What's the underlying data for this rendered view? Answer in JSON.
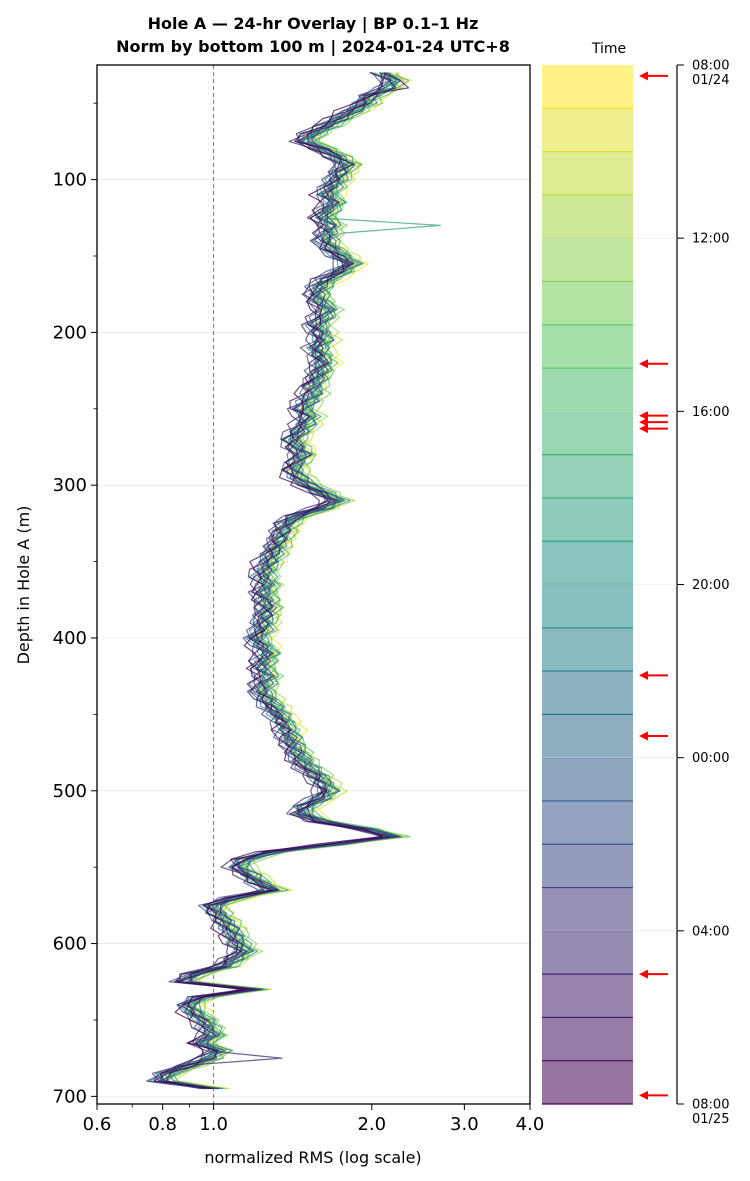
{
  "chart_data": {
    "type": "line",
    "title": "Hole A — 24-hr Overlay  |  BP 0.1–1 Hz",
    "subtitle": "Norm by bottom 100 m  |  2024-01-24 UTC+8",
    "xlabel": "normalized RMS  (log scale)",
    "ylabel": "Depth in Hole A (m)",
    "x_scale": "log",
    "xlim": [
      0.6,
      4.0
    ],
    "ylim": [
      705,
      25
    ],
    "y_inverted": true,
    "x_ticks": [
      {
        "v": 0.6,
        "label": "0.6"
      },
      {
        "v": 0.8,
        "label": "0.8"
      },
      {
        "v": 1.0,
        "label": "1.0"
      },
      {
        "v": 2.0,
        "label": "2.0"
      },
      {
        "v": 3.0,
        "label": "3.0"
      },
      {
        "v": 4.0,
        "label": "4.0"
      }
    ],
    "x_minor_ticks": [
      0.7,
      0.9
    ],
    "y_ticks": [
      {
        "v": 100,
        "label": "100"
      },
      {
        "v": 200,
        "label": "200"
      },
      {
        "v": 300,
        "label": "300"
      },
      {
        "v": 400,
        "label": "400"
      },
      {
        "v": 500,
        "label": "500"
      },
      {
        "v": 600,
        "label": "600"
      },
      {
        "v": 700,
        "label": "700"
      }
    ],
    "y_minor_ticks": [
      50,
      150,
      250,
      350,
      450,
      550,
      650
    ],
    "grid": "horizontal",
    "reference_line": {
      "x": 1.0,
      "style": "dashed"
    },
    "profile_mean": [
      [
        30,
        2.1
      ],
      [
        35,
        2.2
      ],
      [
        40,
        2.15
      ],
      [
        45,
        2.0
      ],
      [
        50,
        1.95
      ],
      [
        55,
        1.85
      ],
      [
        60,
        1.75
      ],
      [
        65,
        1.65
      ],
      [
        70,
        1.55
      ],
      [
        75,
        1.5
      ],
      [
        80,
        1.62
      ],
      [
        85,
        1.72
      ],
      [
        90,
        1.8
      ],
      [
        95,
        1.75
      ],
      [
        100,
        1.72
      ],
      [
        105,
        1.68
      ],
      [
        110,
        1.65
      ],
      [
        115,
        1.7
      ],
      [
        120,
        1.65
      ],
      [
        125,
        1.62
      ],
      [
        130,
        1.68
      ],
      [
        135,
        1.66
      ],
      [
        140,
        1.64
      ],
      [
        145,
        1.68
      ],
      [
        150,
        1.75
      ],
      [
        155,
        1.82
      ],
      [
        160,
        1.75
      ],
      [
        165,
        1.65
      ],
      [
        170,
        1.6
      ],
      [
        175,
        1.58
      ],
      [
        180,
        1.6
      ],
      [
        185,
        1.65
      ],
      [
        190,
        1.62
      ],
      [
        195,
        1.58
      ],
      [
        200,
        1.6
      ],
      [
        205,
        1.62
      ],
      [
        210,
        1.58
      ],
      [
        215,
        1.6
      ],
      [
        220,
        1.62
      ],
      [
        225,
        1.6
      ],
      [
        230,
        1.58
      ],
      [
        235,
        1.55
      ],
      [
        240,
        1.55
      ],
      [
        245,
        1.52
      ],
      [
        250,
        1.48
      ],
      [
        255,
        1.52
      ],
      [
        260,
        1.5
      ],
      [
        265,
        1.46
      ],
      [
        270,
        1.42
      ],
      [
        275,
        1.44
      ],
      [
        280,
        1.48
      ],
      [
        285,
        1.44
      ],
      [
        290,
        1.42
      ],
      [
        295,
        1.46
      ],
      [
        300,
        1.52
      ],
      [
        305,
        1.62
      ],
      [
        310,
        1.72
      ],
      [
        315,
        1.62
      ],
      [
        320,
        1.45
      ],
      [
        325,
        1.38
      ],
      [
        330,
        1.36
      ],
      [
        335,
        1.34
      ],
      [
        340,
        1.32
      ],
      [
        345,
        1.3
      ],
      [
        350,
        1.28
      ],
      [
        355,
        1.26
      ],
      [
        360,
        1.25
      ],
      [
        365,
        1.27
      ],
      [
        370,
        1.25
      ],
      [
        375,
        1.26
      ],
      [
        380,
        1.27
      ],
      [
        385,
        1.26
      ],
      [
        390,
        1.25
      ],
      [
        395,
        1.24
      ],
      [
        400,
        1.21
      ],
      [
        405,
        1.24
      ],
      [
        410,
        1.27
      ],
      [
        415,
        1.25
      ],
      [
        420,
        1.24
      ],
      [
        425,
        1.27
      ],
      [
        430,
        1.25
      ],
      [
        435,
        1.24
      ],
      [
        440,
        1.27
      ],
      [
        445,
        1.3
      ],
      [
        450,
        1.33
      ],
      [
        455,
        1.36
      ],
      [
        460,
        1.38
      ],
      [
        465,
        1.4
      ],
      [
        470,
        1.42
      ],
      [
        475,
        1.45
      ],
      [
        480,
        1.48
      ],
      [
        485,
        1.52
      ],
      [
        490,
        1.58
      ],
      [
        495,
        1.62
      ],
      [
        500,
        1.66
      ],
      [
        505,
        1.6
      ],
      [
        510,
        1.5
      ],
      [
        515,
        1.48
      ],
      [
        520,
        1.6
      ],
      [
        525,
        1.95
      ],
      [
        530,
        2.2
      ],
      [
        535,
        1.7
      ],
      [
        540,
        1.3
      ],
      [
        545,
        1.15
      ],
      [
        550,
        1.12
      ],
      [
        555,
        1.18
      ],
      [
        560,
        1.22
      ],
      [
        565,
        1.3
      ],
      [
        570,
        1.1
      ],
      [
        575,
        1.0
      ],
      [
        580,
        1.02
      ],
      [
        585,
        1.05
      ],
      [
        590,
        1.08
      ],
      [
        595,
        1.1
      ],
      [
        600,
        1.12
      ],
      [
        605,
        1.15
      ],
      [
        610,
        1.1
      ],
      [
        615,
        1.05
      ],
      [
        620,
        0.92
      ],
      [
        625,
        0.88
      ],
      [
        630,
        1.2
      ],
      [
        635,
        0.95
      ],
      [
        640,
        0.9
      ],
      [
        645,
        0.92
      ],
      [
        650,
        0.96
      ],
      [
        655,
        0.98
      ],
      [
        660,
        1.0
      ],
      [
        665,
        0.95
      ],
      [
        670,
        1.02
      ],
      [
        675,
        0.98
      ],
      [
        680,
        0.9
      ],
      [
        685,
        0.82
      ],
      [
        690,
        0.8
      ],
      [
        695,
        1.0
      ]
    ],
    "series_count": 24,
    "colorbar": {
      "title": "Time",
      "segments": 24,
      "colormap": "viridis_r",
      "alpha": 0.55,
      "top_hex": "#fde725",
      "bottom_hex": "#440154",
      "ticks": [
        {
          "hour_offset": 0,
          "label": "08:00",
          "label2": "01/24"
        },
        {
          "hour_offset": 4,
          "label": "12:00",
          "label2": ""
        },
        {
          "hour_offset": 8,
          "label": "16:00",
          "label2": ""
        },
        {
          "hour_offset": 12,
          "label": "20:00",
          "label2": ""
        },
        {
          "hour_offset": 16,
          "label": "00:00",
          "label2": ""
        },
        {
          "hour_offset": 20,
          "label": "04:00",
          "label2": ""
        },
        {
          "hour_offset": 24,
          "label": "08:00",
          "label2": "01/25"
        }
      ],
      "event_arrows_hour_offset": [
        0.25,
        6.9,
        8.1,
        8.25,
        8.4,
        14.1,
        15.5,
        21.0,
        23.8
      ],
      "arrow_color": "#ff0000"
    }
  }
}
